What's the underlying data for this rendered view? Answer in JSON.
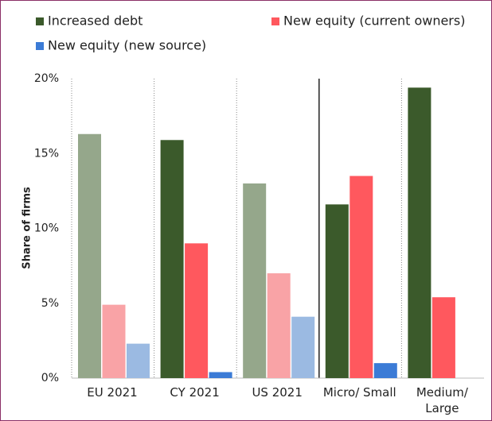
{
  "chart_data": {
    "type": "bar",
    "y_label": "Share of firms",
    "categories": [
      "EU 2021",
      "CY 2021",
      "US 2021",
      "Micro/ Small",
      "Medium/ Large"
    ],
    "series": [
      {
        "name": "Increased debt",
        "color": "#3b5a2b",
        "colors": [
          "#95a78b",
          "#3b5a2b",
          "#95a78b",
          "#3b5a2b",
          "#3b5a2b"
        ],
        "values": [
          16.3,
          15.9,
          13.0,
          11.6,
          19.4
        ]
      },
      {
        "name": "New equity (current owners)",
        "color": "#ff585e",
        "colors": [
          "#f9a3a6",
          "#ff585e",
          "#f9a3a6",
          "#ff585e",
          "#ff585e"
        ],
        "values": [
          4.9,
          9.0,
          7.0,
          13.5,
          5.4
        ]
      },
      {
        "name": "New equity (new source)",
        "color": "#3b7bd6",
        "colors": [
          "#9bbae2",
          "#3b7bd6",
          "#9bbae2",
          "#3b7bd6",
          null
        ],
        "values": [
          2.3,
          0.4,
          4.1,
          1.0,
          null
        ]
      }
    ],
    "ylim": [
      0,
      20
    ],
    "yticks": [
      {
        "value": 0,
        "label": "0%"
      },
      {
        "value": 5,
        "label": "5%"
      },
      {
        "value": 10,
        "label": "10%"
      },
      {
        "value": 15,
        "label": "15%"
      },
      {
        "value": 20,
        "label": "20%"
      }
    ]
  }
}
